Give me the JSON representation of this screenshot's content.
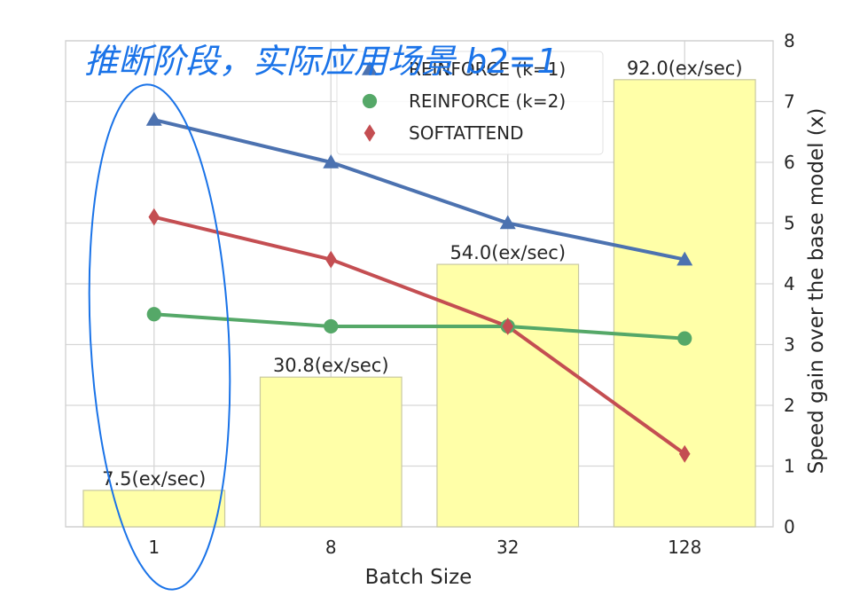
{
  "chart_data": {
    "type": "bar",
    "categories": [
      "1",
      "8",
      "32",
      "128"
    ],
    "bars": {
      "values": [
        7.5,
        30.8,
        54.0,
        92.0
      ],
      "labels": [
        "7.5(ex/sec)",
        "30.8(ex/sec)",
        "54.0(ex/sec)",
        "92.0(ex/sec)"
      ],
      "color": "#ffffa8",
      "edge_color": "#c8c8a0"
    },
    "series": [
      {
        "name": "REINFORCE (k=1)",
        "type": "line",
        "marker": "triangle",
        "color": "#4c72b0",
        "values": [
          6.7,
          6.0,
          5.0,
          4.4
        ]
      },
      {
        "name": "REINFORCE (k=2)",
        "type": "line",
        "marker": "circle",
        "color": "#55a868",
        "values": [
          3.5,
          3.3,
          3.3,
          3.1
        ]
      },
      {
        "name": "SOFTATTEND",
        "type": "line",
        "marker": "diamond",
        "color": "#c44e52",
        "values": [
          5.1,
          4.4,
          3.3,
          1.2
        ]
      }
    ],
    "xlabel": "Batch Size",
    "ylabel_right": "Speed gain over the base model (x)",
    "ylim_right": [
      0,
      8
    ],
    "yticks_right": [
      "0",
      "1",
      "2",
      "3",
      "4",
      "5",
      "6",
      "7",
      "8"
    ],
    "bar_scale_max": 100,
    "grid": true,
    "legend_position": "top-center",
    "annotation": {
      "text": "推断阶段，实际应用场景 b2=1",
      "color": "#1a73e8"
    }
  }
}
